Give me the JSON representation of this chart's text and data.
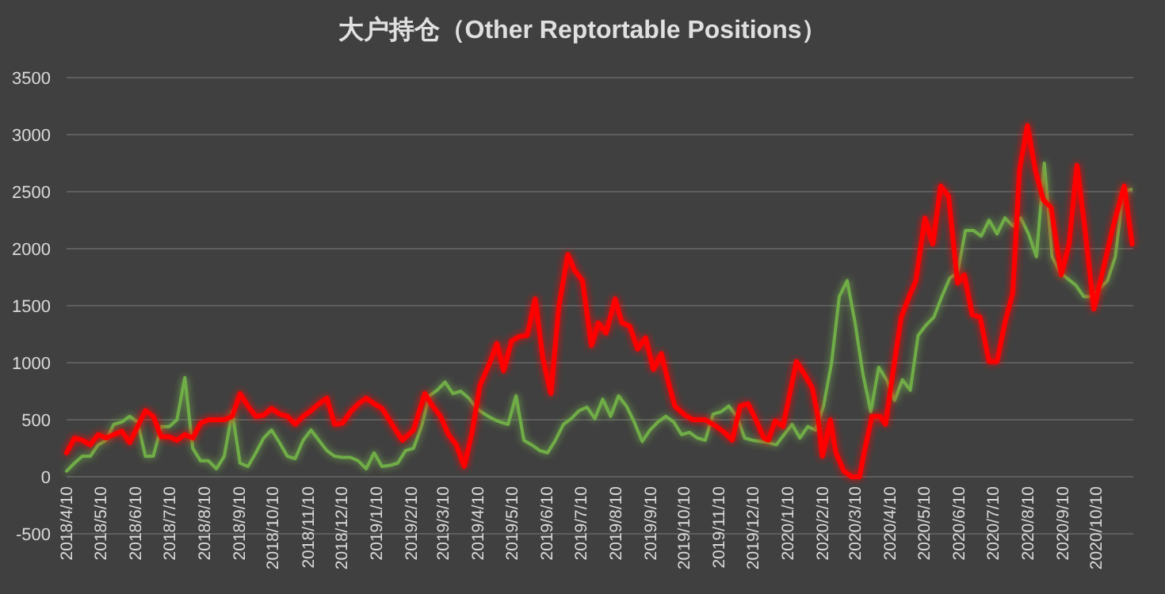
{
  "chart_data": {
    "type": "line",
    "title": "大户持仓（Other Reptortable Positions）",
    "xlim": [
      "2018-04-10",
      "2020-11-12"
    ],
    "xticks": [
      {
        "value": "2018-04-10",
        "label": "2018/4/10"
      },
      {
        "value": "2018-05-10",
        "label": "2018/5/10"
      },
      {
        "value": "2018-06-10",
        "label": "2018/6/10"
      },
      {
        "value": "2018-07-10",
        "label": "2018/7/10"
      },
      {
        "value": "2018-08-10",
        "label": "2018/8/10"
      },
      {
        "value": "2018-09-10",
        "label": "2018/9/10"
      },
      {
        "value": "2018-10-10",
        "label": "2018/10/10"
      },
      {
        "value": "2018-11-10",
        "label": "2018/11/10"
      },
      {
        "value": "2018-12-10",
        "label": "2018/12/10"
      },
      {
        "value": "2019-01-10",
        "label": "2019/1/10"
      },
      {
        "value": "2019-02-10",
        "label": "2019/2/10"
      },
      {
        "value": "2019-03-10",
        "label": "2019/3/10"
      },
      {
        "value": "2019-04-10",
        "label": "2019/4/10"
      },
      {
        "value": "2019-05-10",
        "label": "2019/5/10"
      },
      {
        "value": "2019-06-10",
        "label": "2019/6/10"
      },
      {
        "value": "2019-07-10",
        "label": "2019/7/10"
      },
      {
        "value": "2019-08-10",
        "label": "2019/8/10"
      },
      {
        "value": "2019-09-10",
        "label": "2019/9/10"
      },
      {
        "value": "2019-10-10",
        "label": "2019/10/10"
      },
      {
        "value": "2019-11-10",
        "label": "2019/11/10"
      },
      {
        "value": "2019-12-10",
        "label": "2019/12/10"
      },
      {
        "value": "2020-01-10",
        "label": "2020/1/10"
      },
      {
        "value": "2020-02-10",
        "label": "2020/2/10"
      },
      {
        "value": "2020-03-10",
        "label": "2020/3/10"
      },
      {
        "value": "2020-04-10",
        "label": "2020/4/10"
      },
      {
        "value": "2020-05-10",
        "label": "2020/5/10"
      },
      {
        "value": "2020-06-10",
        "label": "2020/6/10"
      },
      {
        "value": "2020-07-10",
        "label": "2020/7/10"
      },
      {
        "value": "2020-08-10",
        "label": "2020/8/10"
      },
      {
        "value": "2020-09-10",
        "label": "2020/9/10"
      },
      {
        "value": "2020-10-10",
        "label": "2020/10/10"
      }
    ],
    "ylim": [
      -500,
      3500
    ],
    "yticks": [
      -500,
      0,
      500,
      1000,
      1500,
      2000,
      2500,
      3000,
      3500
    ],
    "grid": "y",
    "marker": "none",
    "line_style": "solid",
    "series": [
      {
        "color": "#70ad47",
        "x": [
          "2018-04-10",
          "2018-04-17",
          "2018-04-24",
          "2018-05-01",
          "2018-05-08",
          "2018-05-15",
          "2018-05-22",
          "2018-05-29",
          "2018-06-05",
          "2018-06-12",
          "2018-06-19",
          "2018-06-26",
          "2018-07-03",
          "2018-07-10",
          "2018-07-17",
          "2018-07-24",
          "2018-07-31",
          "2018-08-07",
          "2018-08-14",
          "2018-08-21",
          "2018-08-28",
          "2018-09-04",
          "2018-09-11",
          "2018-09-18",
          "2018-09-25",
          "2018-10-02",
          "2018-10-09",
          "2018-10-16",
          "2018-10-23",
          "2018-10-30",
          "2018-11-06",
          "2018-11-13",
          "2018-11-20",
          "2018-11-27",
          "2018-12-04",
          "2018-12-11",
          "2018-12-18",
          "2018-12-25",
          "2019-01-01",
          "2019-01-08",
          "2019-01-15",
          "2019-01-22",
          "2019-01-29",
          "2019-02-05",
          "2019-02-12",
          "2019-02-19",
          "2019-02-26",
          "2019-03-05",
          "2019-03-12",
          "2019-03-19",
          "2019-03-26",
          "2019-04-02",
          "2019-04-09",
          "2019-04-16",
          "2019-04-23",
          "2019-04-30",
          "2019-05-07",
          "2019-05-14",
          "2019-05-21",
          "2019-05-28",
          "2019-06-04",
          "2019-06-11",
          "2019-06-18",
          "2019-06-25",
          "2019-07-02",
          "2019-07-09",
          "2019-07-16",
          "2019-07-23",
          "2019-07-30",
          "2019-08-06",
          "2019-08-13",
          "2019-08-20",
          "2019-08-27",
          "2019-09-03",
          "2019-09-10",
          "2019-09-17",
          "2019-09-24",
          "2019-10-01",
          "2019-10-08",
          "2019-10-15",
          "2019-10-22",
          "2019-10-29",
          "2019-11-05",
          "2019-11-12",
          "2019-11-19",
          "2019-11-26",
          "2019-12-03",
          "2019-12-10",
          "2019-12-24",
          "2019-12-31",
          "2020-01-07",
          "2020-01-14",
          "2020-01-21",
          "2020-01-28",
          "2020-02-04",
          "2020-02-11",
          "2020-02-18",
          "2020-02-25",
          "2020-03-03",
          "2020-03-10",
          "2020-03-17",
          "2020-03-24",
          "2020-03-31",
          "2020-04-07",
          "2020-04-14",
          "2020-04-21",
          "2020-04-28",
          "2020-05-05",
          "2020-05-12",
          "2020-05-19",
          "2020-05-26",
          "2020-06-02",
          "2020-06-09",
          "2020-06-16",
          "2020-06-23",
          "2020-06-30",
          "2020-07-07",
          "2020-07-14",
          "2020-07-21",
          "2020-07-28",
          "2020-08-04",
          "2020-08-11",
          "2020-08-18",
          "2020-08-25",
          "2020-09-01",
          "2020-09-08",
          "2020-09-22",
          "2020-09-29",
          "2020-10-06",
          "2020-10-20",
          "2020-10-27",
          "2020-11-03",
          "2020-11-10"
        ],
        "values": [
          50,
          120,
          180,
          180,
          280,
          320,
          460,
          480,
          530,
          480,
          180,
          180,
          440,
          440,
          500,
          870,
          250,
          140,
          140,
          70,
          180,
          570,
          120,
          90,
          210,
          340,
          410,
          300,
          180,
          160,
          320,
          410,
          320,
          230,
          180,
          170,
          170,
          140,
          70,
          210,
          90,
          100,
          120,
          230,
          250,
          440,
          710,
          760,
          830,
          730,
          750,
          690,
          600,
          550,
          510,
          480,
          460,
          710,
          320,
          280,
          230,
          210,
          320,
          460,
          510,
          580,
          610,
          510,
          680,
          530,
          710,
          620,
          480,
          310,
          410,
          480,
          530,
          480,
          370,
          390,
          340,
          320,
          550,
          570,
          620,
          530,
          340,
          320,
          300,
          280,
          370,
          460,
          340,
          440,
          410,
          620,
          990,
          1580,
          1720,
          1350,
          900,
          570,
          960,
          850,
          670,
          850,
          760,
          1240,
          1330,
          1400,
          1580,
          1740,
          1790,
          2160,
          2160,
          2110,
          2250,
          2130,
          2270,
          2200,
          2270,
          2130,
          1930,
          2750,
          1930,
          1790,
          1680,
          1580,
          1580,
          1720,
          1930,
          2500,
          2520
        ]
      },
      {
        "color": "#ff0000",
        "x": [
          "2018-04-10",
          "2018-04-17",
          "2018-04-24",
          "2018-05-01",
          "2018-05-08",
          "2018-05-15",
          "2018-05-22",
          "2018-05-29",
          "2018-06-05",
          "2018-06-12",
          "2018-06-19",
          "2018-06-26",
          "2018-07-03",
          "2018-07-10",
          "2018-07-17",
          "2018-07-24",
          "2018-07-31",
          "2018-08-07",
          "2018-08-14",
          "2018-08-21",
          "2018-08-28",
          "2018-09-04",
          "2018-09-11",
          "2018-09-18",
          "2018-09-25",
          "2018-10-02",
          "2018-10-09",
          "2018-10-16",
          "2018-10-23",
          "2018-10-30",
          "2018-11-06",
          "2018-11-13",
          "2018-11-20",
          "2018-11-27",
          "2018-12-04",
          "2018-12-11",
          "2018-12-18",
          "2018-12-25",
          "2019-01-01",
          "2019-01-08",
          "2019-01-15",
          "2019-02-02",
          "2019-02-12",
          "2019-02-22",
          "2019-03-01",
          "2019-03-08",
          "2019-03-15",
          "2019-03-22",
          "2019-03-29",
          "2019-04-05",
          "2019-04-12",
          "2019-04-22",
          "2019-04-27",
          "2019-05-03",
          "2019-05-10",
          "2019-05-17",
          "2019-05-24",
          "2019-05-31",
          "2019-06-07",
          "2019-06-14",
          "2019-06-21",
          "2019-06-29",
          "2019-07-05",
          "2019-07-12",
          "2019-07-20",
          "2019-07-26",
          "2019-08-02",
          "2019-08-10",
          "2019-08-16",
          "2019-08-23",
          "2019-08-30",
          "2019-09-06",
          "2019-09-13",
          "2019-09-20",
          "2019-09-27",
          "2019-10-02",
          "2019-10-11",
          "2019-10-18",
          "2019-10-29",
          "2019-11-08",
          "2019-11-15",
          "2019-11-22",
          "2019-11-29",
          "2019-12-06",
          "2019-12-13",
          "2019-12-20",
          "2019-12-24",
          "2019-12-30",
          "2020-01-06",
          "2020-01-18",
          "2020-01-25",
          "2020-02-01",
          "2020-02-06",
          "2020-02-10",
          "2020-02-17",
          "2020-02-22",
          "2020-02-29",
          "2020-03-07",
          "2020-03-14",
          "2020-03-18",
          "2020-03-25",
          "2020-04-01",
          "2020-04-06",
          "2020-04-13",
          "2020-04-20",
          "2020-04-27",
          "2020-05-03",
          "2020-05-11",
          "2020-05-18",
          "2020-05-25",
          "2020-06-01",
          "2020-06-09",
          "2020-06-15",
          "2020-06-22",
          "2020-06-29",
          "2020-07-07",
          "2020-07-14",
          "2020-07-21",
          "2020-07-28",
          "2020-08-03",
          "2020-08-10",
          "2020-08-17",
          "2020-08-24",
          "2020-08-31",
          "2020-09-09",
          "2020-09-16",
          "2020-09-23",
          "2020-09-30",
          "2020-10-08",
          "2020-10-16",
          "2020-10-26",
          "2020-11-04",
          "2020-11-11"
        ],
        "values": [
          210,
          340,
          320,
          280,
          370,
          340,
          370,
          400,
          300,
          440,
          580,
          530,
          350,
          350,
          320,
          370,
          340,
          470,
          500,
          500,
          500,
          530,
          730,
          620,
          530,
          540,
          600,
          550,
          530,
          460,
          530,
          580,
          640,
          690,
          460,
          470,
          570,
          640,
          690,
          640,
          600,
          320,
          410,
          730,
          620,
          530,
          370,
          280,
          90,
          390,
          800,
          1030,
          1170,
          930,
          1190,
          1230,
          1240,
          1560,
          1030,
          730,
          1490,
          1950,
          1810,
          1720,
          1150,
          1350,
          1260,
          1560,
          1350,
          1320,
          1120,
          1220,
          940,
          1080,
          800,
          620,
          540,
          500,
          500,
          440,
          390,
          320,
          620,
          640,
          500,
          340,
          320,
          490,
          440,
          1010,
          900,
          780,
          530,
          180,
          500,
          210,
          50,
          0,
          0,
          210,
          530,
          530,
          460,
          940,
          1400,
          1580,
          1720,
          2270,
          2040,
          2550,
          2460,
          1700,
          1770,
          1420,
          1400,
          1010,
          1010,
          1350,
          1610,
          2690,
          3080,
          2690,
          2430,
          2360,
          1770,
          2040,
          2730,
          2180,
          1470,
          1810,
          2230,
          2550,
          2040
        ]
      }
    ]
  }
}
